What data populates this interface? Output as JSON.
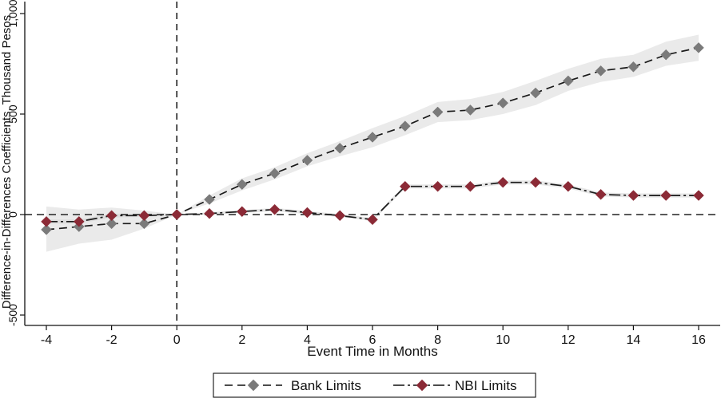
{
  "chart_data": {
    "type": "line",
    "title": "",
    "xlabel": "Event Time in Months",
    "ylabel": "Difference-in-Differences Coefficients, Thousand Pesos",
    "xlim": [
      -4,
      16
    ],
    "ylim": [
      -500,
      1000
    ],
    "x_ticks": [
      "-4",
      "-2",
      "0",
      "2",
      "4",
      "6",
      "8",
      "10",
      "12",
      "14",
      "16"
    ],
    "x_tick_values": [
      -4,
      -2,
      0,
      2,
      4,
      6,
      8,
      10,
      12,
      14,
      16
    ],
    "y_ticks": [
      "-500",
      "0",
      "500",
      "1,000"
    ],
    "y_tick_values": [
      -500,
      0,
      500,
      1000
    ],
    "reference_lines": {
      "horizontal_y": 0,
      "vertical_x": 0
    },
    "grid": false,
    "legend": {
      "placement": "bottom"
    },
    "x": [
      -4,
      -3,
      -2,
      -1,
      0,
      1,
      2,
      3,
      4,
      5,
      6,
      7,
      8,
      9,
      10,
      11,
      12,
      13,
      14,
      15,
      16
    ],
    "series": [
      {
        "name": "Bank Limits",
        "color": "#7a7a7a",
        "line_style": "dashed",
        "marker": "diamond",
        "values": [
          -75,
          -60,
          -45,
          -45,
          0,
          75,
          150,
          205,
          270,
          330,
          385,
          440,
          510,
          520,
          555,
          605,
          665,
          715,
          735,
          795,
          830
        ],
        "ci_lower": [
          -185,
          -145,
          -125,
          -70,
          0,
          55,
          120,
          175,
          240,
          290,
          335,
          395,
          460,
          470,
          500,
          545,
          615,
          660,
          685,
          740,
          765
        ],
        "ci_upper": [
          40,
          25,
          35,
          20,
          0,
          95,
          180,
          235,
          305,
          365,
          430,
          490,
          560,
          575,
          610,
          665,
          725,
          775,
          795,
          860,
          895
        ]
      },
      {
        "name": "NBI Limits",
        "color": "#8b2a36",
        "line_style": "dash-dot",
        "marker": "diamond",
        "values": [
          -35,
          -35,
          -5,
          -5,
          0,
          5,
          15,
          25,
          10,
          -5,
          -25,
          140,
          140,
          140,
          160,
          160,
          140,
          100,
          95,
          95,
          95
        ],
        "ci_lower": [
          -45,
          -45,
          -15,
          -12,
          0,
          -2,
          8,
          17,
          2,
          -12,
          -32,
          130,
          130,
          130,
          150,
          150,
          130,
          90,
          85,
          85,
          85
        ],
        "ci_upper": [
          -25,
          -25,
          5,
          2,
          0,
          12,
          22,
          33,
          18,
          2,
          -18,
          150,
          150,
          150,
          170,
          170,
          150,
          110,
          105,
          105,
          105
        ]
      }
    ]
  }
}
